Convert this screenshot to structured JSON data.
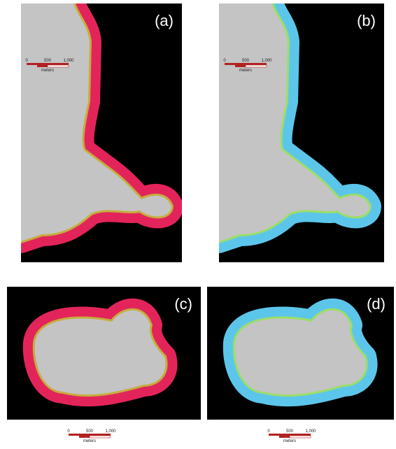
{
  "panels": [
    {
      "label": "(a)",
      "scale": {
        "ticks": [
          "0",
          "500",
          "1,000"
        ],
        "unit": "meters"
      }
    },
    {
      "label": "(b)",
      "scale": {
        "ticks": [
          "0",
          "500",
          "1,000"
        ],
        "unit": "meters"
      }
    },
    {
      "label": "(c)",
      "scale": {
        "ticks": [
          "0",
          "500",
          "1,000"
        ],
        "unit": "meters"
      }
    },
    {
      "label": "(d)",
      "scale": {
        "ticks": [
          "0",
          "500",
          "1,000"
        ],
        "unit": "meters"
      }
    }
  ]
}
